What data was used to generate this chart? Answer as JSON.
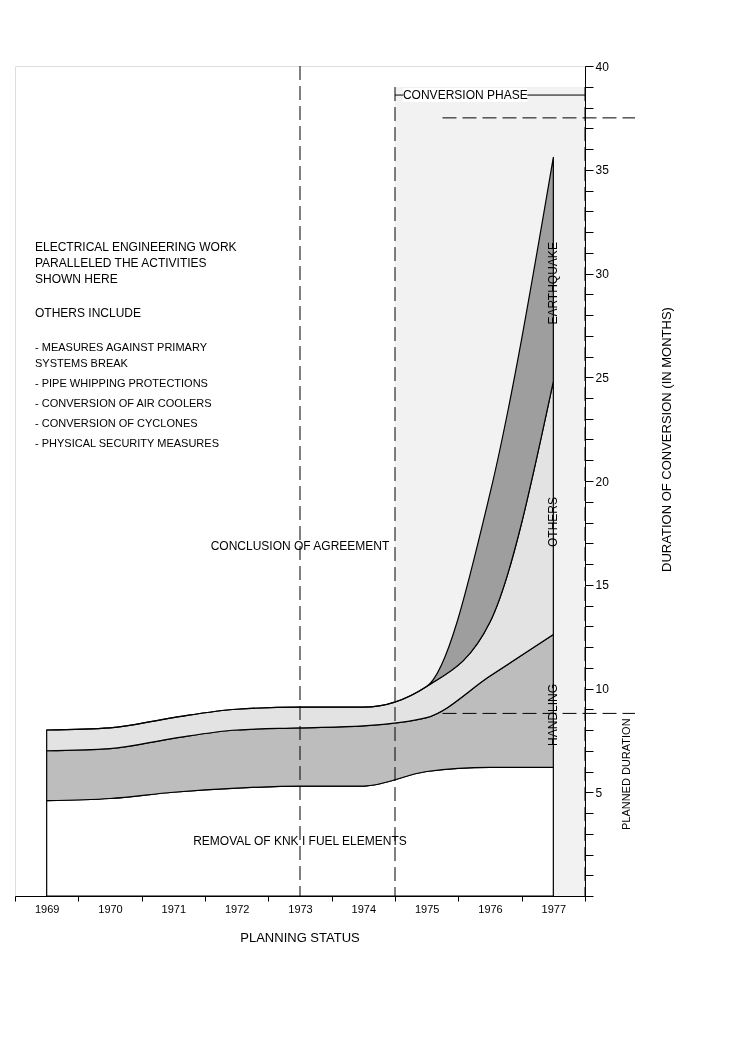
{
  "chart_data": {
    "type": "area",
    "stacked": true,
    "categories": [
      "1969",
      "1970",
      "1971",
      "1972",
      "1973",
      "1974",
      "1975",
      "1976",
      "1977"
    ],
    "series": [
      {
        "name": "REMOVAL OF KNK I FUEL ELEMENTS",
        "color": "#ffffff",
        "values": [
          4.6,
          4.7,
          5.0,
          5.2,
          5.3,
          5.3,
          6.0,
          6.2,
          6.2
        ]
      },
      {
        "name": "HANDLING",
        "color": "#bdbdbd",
        "values": [
          2.4,
          2.4,
          2.6,
          2.8,
          2.8,
          2.9,
          2.6,
          4.4,
          6.4
        ]
      },
      {
        "name": "OTHERS",
        "color": "#e3e3e3",
        "values": [
          1.0,
          1.0,
          1.0,
          1.0,
          1.0,
          0.9,
          1.5,
          2.6,
          12.2
        ]
      },
      {
        "name": "EARTHQUAKE",
        "color": "#9e9e9e",
        "values": [
          0,
          0,
          0,
          0,
          0,
          0,
          0,
          6.2,
          10.8
        ]
      }
    ],
    "ylim": [
      0,
      40
    ],
    "yticks": [
      {
        "value": 0,
        "label": null
      },
      {
        "value": 1,
        "label": null
      },
      {
        "value": 2,
        "label": null
      },
      {
        "value": 3,
        "label": null
      },
      {
        "value": 4,
        "label": null
      },
      5,
      {
        "value": 6,
        "label": null
      },
      {
        "value": 7,
        "label": null
      },
      {
        "value": 8,
        "label": null
      },
      {
        "value": 9,
        "label": null
      },
      10,
      {
        "value": 11,
        "label": null
      },
      {
        "value": 12,
        "label": null
      },
      {
        "value": 13,
        "label": null
      },
      {
        "value": 14,
        "label": null
      },
      15,
      {
        "value": 16,
        "label": null
      },
      {
        "value": 17,
        "label": null
      },
      {
        "value": 18,
        "label": null
      },
      {
        "value": 19,
        "label": null
      },
      20,
      {
        "value": 21,
        "label": null
      },
      {
        "value": 22,
        "label": null
      },
      {
        "value": 23,
        "label": null
      },
      {
        "value": 24,
        "label": null
      },
      25,
      {
        "value": 26,
        "label": null
      },
      {
        "value": 27,
        "label": null
      },
      {
        "value": 28,
        "label": null
      },
      {
        "value": 29,
        "label": null
      },
      30,
      {
        "value": 31,
        "label": null
      },
      {
        "value": 32,
        "label": null
      },
      {
        "value": 33,
        "label": null
      },
      {
        "value": 34,
        "label": null
      },
      35,
      {
        "value": 36,
        "label": null
      },
      {
        "value": 37,
        "label": null
      },
      {
        "value": 38,
        "label": null
      },
      {
        "value": 39,
        "label": null
      },
      40
    ],
    "xlabel": "PLANNING STATUS",
    "ylabel": "DURATION OF CONVERSION (IN MONTHS)",
    "ref_lines": [
      {
        "axis": "x",
        "value": "1973",
        "label": "CONCLUSION OF AGREEMENT",
        "line_style": "dashed"
      },
      {
        "axis": "y",
        "value": 8.8,
        "label": "PLANNED DURATION",
        "line_style": "dashed"
      },
      {
        "axis": "y",
        "value": 37.5,
        "label": null,
        "line_style": "dashed"
      }
    ],
    "bands": [
      {
        "axis": "x",
        "from": "1974",
        "to": "1977",
        "label": "CONVERSION PHASE"
      }
    ],
    "annotations": [
      "ELECTRICAL ENGINEERING WORK PARALLELED THE ACTIVITIES SHOWN HERE",
      "OTHERS INCLUDE",
      "- MEASURES AGAINST PRIMARY SYSTEMS BREAK",
      "- PIPE WHIPPING PROTECTIONS",
      "- CONVERSION OF AIR COOLERS",
      "- CONVERSION OF CYCLONES",
      "- PHYSICAL SECURITY MEASURES"
    ],
    "grid": false,
    "legend": false
  }
}
